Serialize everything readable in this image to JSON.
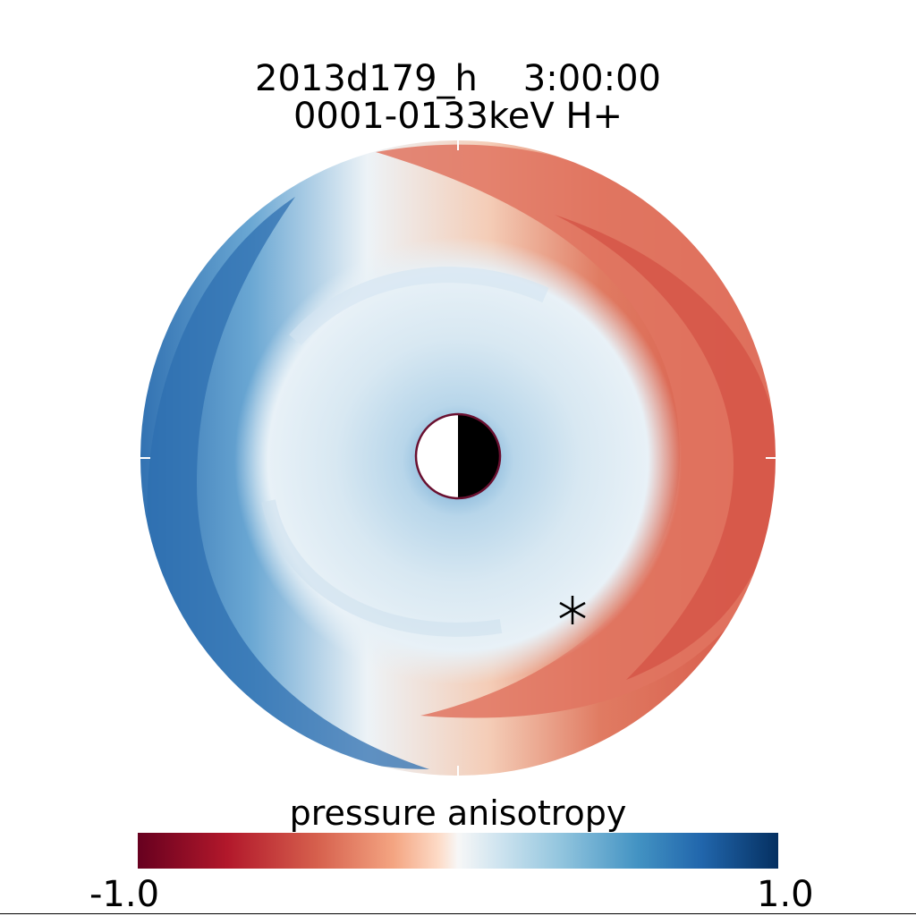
{
  "title": {
    "line1": "2013d179_h    3:00:00",
    "line2": "0001-0133keV H+"
  },
  "colorbar": {
    "label": "pressure anisotropy",
    "min_label": "-1.0",
    "max_label": "1.0",
    "range": [
      -1.0,
      1.0
    ],
    "colors": [
      "#67001f",
      "#b2182b",
      "#d6604d",
      "#f4a582",
      "#fddbc7",
      "#f7f7f7",
      "#d1e5f0",
      "#92c5de",
      "#4393c3",
      "#2166ac",
      "#053061"
    ]
  },
  "chart_data": {
    "type": "heatmap",
    "projection": "polar",
    "title": "2013d179_h    3:00:00 / 0001-0133keV H+",
    "colorbar_label": "pressure anisotropy",
    "value_range": [
      -1.0,
      1.0
    ],
    "center_marker": "earth-day-night-disk",
    "point_marker": "asterisk",
    "regions": [
      {
        "region": "dayside outer ring (right)",
        "approx_value": -0.6
      },
      {
        "region": "nightside outer ring (left)",
        "approx_value": 0.7
      },
      {
        "region": "inner region",
        "approx_value": 0.15
      },
      {
        "region": "near center",
        "approx_value": 0.4
      }
    ]
  }
}
